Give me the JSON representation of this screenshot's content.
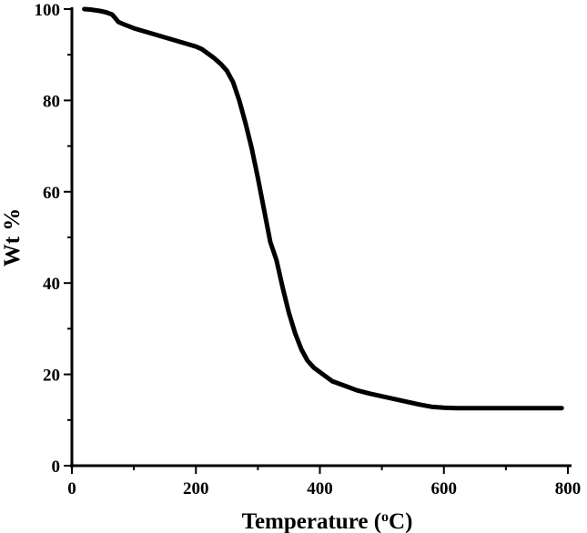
{
  "chart_data": {
    "type": "line",
    "title": "",
    "xlabel": "Temperature (",
    "xlabel_sup": "o",
    "xlabel_end": "C)",
    "ylabel": "Wt %",
    "xlim": [
      0,
      800
    ],
    "ylim": [
      0,
      100
    ],
    "x_ticks": [
      0,
      200,
      400,
      600,
      800
    ],
    "y_ticks": [
      0,
      20,
      40,
      60,
      80,
      100
    ],
    "grid": false,
    "legend": "none",
    "colors": {
      "line": "#000000",
      "axis": "#000000"
    },
    "series": [
      {
        "x": [
          20,
          30,
          45,
          55,
          65,
          75,
          85,
          100,
          120,
          140,
          160,
          180,
          200,
          210,
          220,
          230,
          240,
          250,
          260,
          270,
          280,
          290,
          300,
          310,
          320,
          330,
          340,
          350,
          360,
          370,
          380,
          390,
          400,
          420,
          440,
          460,
          480,
          500,
          520,
          540,
          560,
          580,
          600,
          620,
          650,
          700,
          750,
          790
        ],
        "y": [
          100,
          99.9,
          99.6,
          99.3,
          98.8,
          97.2,
          96.6,
          95.8,
          95.0,
          94.2,
          93.4,
          92.6,
          91.8,
          91.2,
          90.2,
          89.2,
          88.0,
          86.5,
          84.0,
          80.0,
          75.0,
          69.5,
          63.0,
          56.0,
          49.0,
          45.0,
          39.0,
          33.5,
          29.0,
          25.5,
          23.0,
          21.5,
          20.5,
          18.5,
          17.5,
          16.5,
          15.8,
          15.2,
          14.6,
          14.0,
          13.4,
          12.9,
          12.7,
          12.6,
          12.6,
          12.6,
          12.6,
          12.6
        ]
      }
    ]
  }
}
